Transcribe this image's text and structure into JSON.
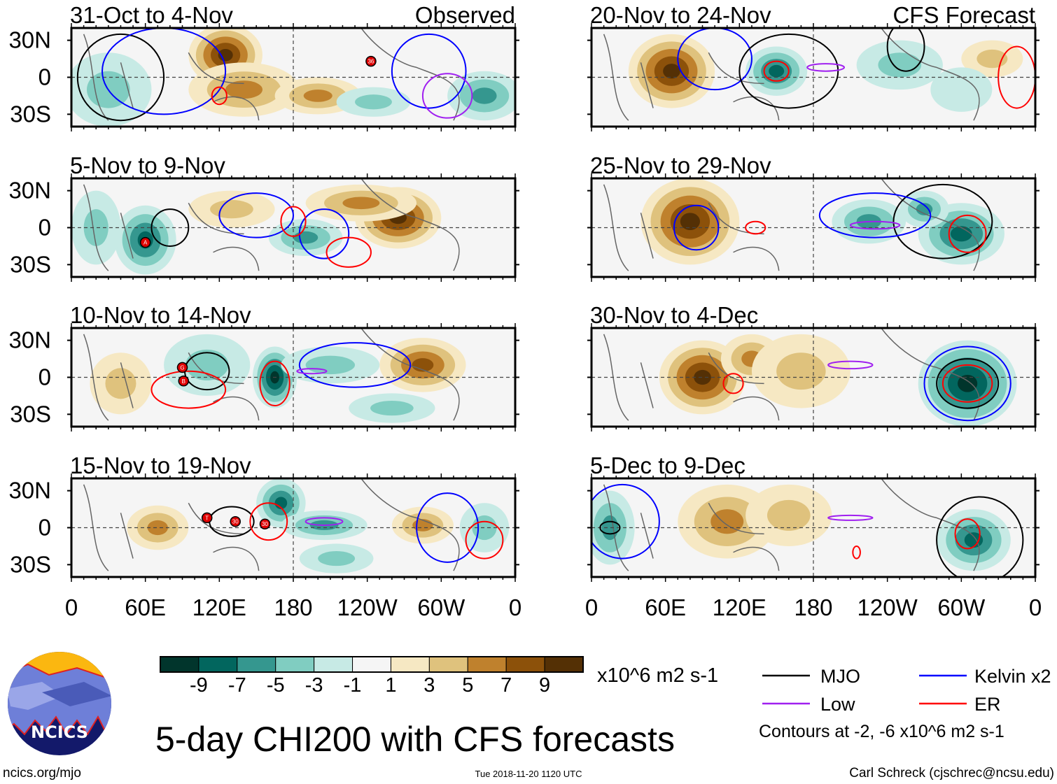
{
  "panels": [
    {
      "title": "31-Oct to 4-Nov",
      "tag": "Observed",
      "blobs": [
        {
          "lon": 125,
          "lat": 18,
          "rx": 30,
          "ry": 25,
          "v": 9
        },
        {
          "lon": 140,
          "lat": -10,
          "rx": 45,
          "ry": 22,
          "v": 5
        },
        {
          "lon": 200,
          "lat": -15,
          "rx": 35,
          "ry": 15,
          "v": 5
        },
        {
          "lon": 30,
          "lat": -10,
          "rx": 35,
          "ry": 30,
          "v": -3
        },
        {
          "lon": 335,
          "lat": -15,
          "rx": 30,
          "ry": 20,
          "v": -5
        },
        {
          "lon": 245,
          "lat": -20,
          "rx": 30,
          "ry": 12,
          "v": -3
        }
      ],
      "contours": [
        {
          "type": "mjo",
          "lon": 40,
          "lat": 0,
          "rx": 35,
          "ry": 35
        },
        {
          "type": "kelvin",
          "lon": 75,
          "lat": 5,
          "rx": 50,
          "ry": 35
        },
        {
          "type": "kelvin",
          "lon": 290,
          "lat": 5,
          "rx": 30,
          "ry": 30
        },
        {
          "type": "er",
          "lon": 120,
          "lat": -15,
          "rx": 6,
          "ry": 7
        },
        {
          "type": "low",
          "lon": 305,
          "lat": -15,
          "rx": 20,
          "ry": 18
        }
      ],
      "storms": [
        {
          "lon": 243,
          "lat": 13,
          "label": "36"
        }
      ]
    },
    {
      "title": "5-Nov to 9-Nov",
      "tag": "",
      "blobs": [
        {
          "lon": 265,
          "lat": 8,
          "rx": 35,
          "ry": 25,
          "v": 9
        },
        {
          "lon": 235,
          "lat": 20,
          "rx": 45,
          "ry": 15,
          "v": 5
        },
        {
          "lon": 130,
          "lat": 15,
          "rx": 35,
          "ry": 15,
          "v": 3
        },
        {
          "lon": 60,
          "lat": -10,
          "rx": 25,
          "ry": 28,
          "v": -7
        },
        {
          "lon": 190,
          "lat": -8,
          "rx": 30,
          "ry": 15,
          "v": -5
        },
        {
          "lon": 20,
          "lat": 0,
          "rx": 20,
          "ry": 30,
          "v": -3
        }
      ],
      "contours": [
        {
          "type": "mjo",
          "lon": 80,
          "lat": 0,
          "rx": 15,
          "ry": 15
        },
        {
          "type": "kelvin",
          "lon": 150,
          "lat": 10,
          "rx": 30,
          "ry": 18
        },
        {
          "type": "kelvin",
          "lon": 205,
          "lat": -5,
          "rx": 20,
          "ry": 20
        },
        {
          "type": "er",
          "lon": 180,
          "lat": 5,
          "rx": 10,
          "ry": 12
        },
        {
          "type": "er",
          "lon": 225,
          "lat": -20,
          "rx": 18,
          "ry": 12
        }
      ],
      "storms": [
        {
          "lon": 60,
          "lat": -12,
          "label": "A"
        }
      ]
    },
    {
      "title": "10-Nov to 14-Nov",
      "tag": "",
      "blobs": [
        {
          "lon": 165,
          "lat": 0,
          "rx": 18,
          "ry": 25,
          "v": 9,
          "neg": true
        },
        {
          "lon": 40,
          "lat": -5,
          "rx": 25,
          "ry": 25,
          "v": 3
        },
        {
          "lon": 285,
          "lat": 10,
          "rx": 35,
          "ry": 22,
          "v": 7
        },
        {
          "lon": 110,
          "lat": 10,
          "rx": 35,
          "ry": 25,
          "v": -3
        },
        {
          "lon": 210,
          "lat": 10,
          "rx": 40,
          "ry": 15,
          "v": -3
        },
        {
          "lon": 260,
          "lat": -25,
          "rx": 35,
          "ry": 12,
          "v": -3
        }
      ],
      "contours": [
        {
          "type": "mjo",
          "lon": 110,
          "lat": 5,
          "rx": 18,
          "ry": 15
        },
        {
          "type": "er",
          "lon": 95,
          "lat": -10,
          "rx": 30,
          "ry": 15
        },
        {
          "type": "er",
          "lon": 165,
          "lat": -5,
          "rx": 12,
          "ry": 18
        },
        {
          "type": "kelvin",
          "lon": 230,
          "lat": 10,
          "rx": 45,
          "ry": 18
        },
        {
          "type": "low",
          "lon": 195,
          "lat": 5,
          "rx": 12,
          "ry": 2
        }
      ],
      "storms": [
        {
          "lon": 90,
          "lat": 8,
          "label": "G"
        },
        {
          "lon": 91,
          "lat": -3,
          "label": "B"
        }
      ]
    },
    {
      "title": "15-Nov to 19-Nov",
      "tag": "",
      "blobs": [
        {
          "lon": 70,
          "lat": 0,
          "rx": 25,
          "ry": 18,
          "v": 5
        },
        {
          "lon": 170,
          "lat": 20,
          "rx": 20,
          "ry": 20,
          "v": -7
        },
        {
          "lon": 205,
          "lat": 2,
          "rx": 35,
          "ry": 12,
          "v": -5
        },
        {
          "lon": 285,
          "lat": 2,
          "rx": 25,
          "ry": 15,
          "v": 5
        },
        {
          "lon": 215,
          "lat": -25,
          "rx": 30,
          "ry": 12,
          "v": -3
        },
        {
          "lon": 335,
          "lat": 0,
          "rx": 20,
          "ry": 20,
          "v": -3
        }
      ],
      "contours": [
        {
          "type": "mjo",
          "lon": 130,
          "lat": 5,
          "rx": 18,
          "ry": 12
        },
        {
          "type": "er",
          "lon": 160,
          "lat": 5,
          "rx": 15,
          "ry": 15
        },
        {
          "type": "kelvin",
          "lon": 305,
          "lat": 0,
          "rx": 25,
          "ry": 28
        },
        {
          "type": "low",
          "lon": 205,
          "lat": 5,
          "rx": 15,
          "ry": 3
        },
        {
          "type": "er",
          "lon": 335,
          "lat": -10,
          "rx": 15,
          "ry": 15
        }
      ],
      "storms": [
        {
          "lon": 110,
          "lat": 8,
          "label": "T"
        },
        {
          "lon": 133,
          "lat": 5,
          "label": "30"
        },
        {
          "lon": 157,
          "lat": 3,
          "label": "30"
        }
      ]
    },
    {
      "title": "20-Nov to 24-Nov",
      "tag": "CFS Forecast",
      "blobs": [
        {
          "lon": 65,
          "lat": 5,
          "rx": 35,
          "ry": 30,
          "v": 9
        },
        {
          "lon": 150,
          "lat": 5,
          "rx": 25,
          "ry": 20,
          "v": -7
        },
        {
          "lon": 250,
          "lat": 10,
          "rx": 35,
          "ry": 20,
          "v": -3
        },
        {
          "lon": 325,
          "lat": 15,
          "rx": 25,
          "ry": 15,
          "v": 3
        },
        {
          "lon": 300,
          "lat": -10,
          "rx": 25,
          "ry": 18,
          "v": -1
        }
      ],
      "contours": [
        {
          "type": "kelvin",
          "lon": 100,
          "lat": 15,
          "rx": 30,
          "ry": 25
        },
        {
          "type": "er",
          "lon": 150,
          "lat": 5,
          "rx": 10,
          "ry": 8
        },
        {
          "type": "mjo",
          "lon": 160,
          "lat": 5,
          "rx": 40,
          "ry": 30
        },
        {
          "type": "low",
          "lon": 190,
          "lat": 8,
          "rx": 15,
          "ry": 3
        },
        {
          "type": "er",
          "lon": 345,
          "lat": 0,
          "rx": 15,
          "ry": 25
        },
        {
          "type": "mjo",
          "lon": 255,
          "lat": 25,
          "rx": 15,
          "ry": 20
        }
      ],
      "storms": []
    },
    {
      "title": "25-Nov to 29-Nov",
      "tag": "",
      "blobs": [
        {
          "lon": 80,
          "lat": 5,
          "rx": 40,
          "ry": 35,
          "v": 9
        },
        {
          "lon": 300,
          "lat": -5,
          "rx": 35,
          "ry": 25,
          "v": -7
        },
        {
          "lon": 225,
          "lat": 5,
          "rx": 30,
          "ry": 18,
          "v": -5
        },
        {
          "lon": 270,
          "lat": 15,
          "rx": 20,
          "ry": 15,
          "v": -5
        }
      ],
      "contours": [
        {
          "type": "kelvin",
          "lon": 85,
          "lat": 0,
          "rx": 18,
          "ry": 18
        },
        {
          "type": "mjo",
          "lon": 285,
          "lat": 5,
          "rx": 40,
          "ry": 30
        },
        {
          "type": "er",
          "lon": 305,
          "lat": -5,
          "rx": 15,
          "ry": 15
        },
        {
          "type": "kelvin",
          "lon": 230,
          "lat": 10,
          "rx": 45,
          "ry": 18
        },
        {
          "type": "er",
          "lon": 133,
          "lat": 0,
          "rx": 8,
          "ry": 5
        },
        {
          "type": "low",
          "lon": 230,
          "lat": 2,
          "rx": 20,
          "ry": 3
        }
      ],
      "storms": []
    },
    {
      "title": "30-Nov to 4-Dec",
      "tag": "",
      "blobs": [
        {
          "lon": 90,
          "lat": 0,
          "rx": 35,
          "ry": 30,
          "v": 9
        },
        {
          "lon": 130,
          "lat": 15,
          "rx": 25,
          "ry": 20,
          "v": 5
        },
        {
          "lon": 170,
          "lat": 5,
          "rx": 40,
          "ry": 30,
          "v": 3
        },
        {
          "lon": 305,
          "lat": -5,
          "rx": 40,
          "ry": 35,
          "v": -9
        }
      ],
      "contours": [
        {
          "type": "er",
          "lon": 115,
          "lat": -5,
          "rx": 8,
          "ry": 8
        },
        {
          "type": "mjo",
          "lon": 305,
          "lat": -5,
          "rx": 25,
          "ry": 20
        },
        {
          "type": "kelvin",
          "lon": 305,
          "lat": -5,
          "rx": 35,
          "ry": 30
        },
        {
          "type": "er",
          "lon": 305,
          "lat": -5,
          "rx": 20,
          "ry": 15
        },
        {
          "type": "low",
          "lon": 210,
          "lat": 10,
          "rx": 18,
          "ry": 3
        }
      ],
      "storms": []
    },
    {
      "title": "5-Dec to 9-Dec",
      "tag": "",
      "blobs": [
        {
          "lon": 110,
          "lat": 5,
          "rx": 40,
          "ry": 30,
          "v": 5
        },
        {
          "lon": 160,
          "lat": 10,
          "rx": 35,
          "ry": 25,
          "v": 3
        },
        {
          "lon": 15,
          "lat": 0,
          "rx": 20,
          "ry": 30,
          "v": -5
        },
        {
          "lon": 310,
          "lat": -10,
          "rx": 30,
          "ry": 25,
          "v": -7
        }
      ],
      "contours": [
        {
          "type": "kelvin",
          "lon": 25,
          "lat": 5,
          "rx": 30,
          "ry": 30
        },
        {
          "type": "mjo",
          "lon": 15,
          "lat": 0,
          "rx": 8,
          "ry": 5
        },
        {
          "type": "mjo",
          "lon": 315,
          "lat": -10,
          "rx": 35,
          "ry": 35
        },
        {
          "type": "er",
          "lon": 305,
          "lat": -5,
          "rx": 10,
          "ry": 12
        },
        {
          "type": "low",
          "lon": 210,
          "lat": 8,
          "rx": 18,
          "ry": 2
        },
        {
          "type": "er",
          "lon": 215,
          "lat": -20,
          "rx": 3,
          "ry": 5
        }
      ],
      "storms": []
    }
  ],
  "lat_labels": [
    "30N",
    "0",
    "30S"
  ],
  "lon_labels": [
    "0",
    "60E",
    "120E",
    "180",
    "120W",
    "60W",
    "0"
  ],
  "colorbar": {
    "colors": [
      "#01352c",
      "#02665e",
      "#35978f",
      "#80cdc1",
      "#c7eae5",
      "#f5f5f5",
      "#f6e8c3",
      "#dfc27d",
      "#bf812d",
      "#8c510a",
      "#543005"
    ],
    "labels": [
      "-9",
      "-7",
      "-5",
      "-3",
      "-1",
      "1",
      "3",
      "5",
      "7",
      "9"
    ],
    "units": "x10^6 m2 s-1"
  },
  "legend": {
    "items": [
      {
        "label": "MJO",
        "color": "#000000"
      },
      {
        "label": "Kelvin x2",
        "color": "#0000ff"
      },
      {
        "label": "Low",
        "color": "#a020f0"
      },
      {
        "label": "ER",
        "color": "#ff0000"
      }
    ],
    "note": "Contours at -2, -6 x10^6 m2 s-1"
  },
  "title": "5-day CHI200 with CFS forecasts",
  "logo_text": "NCICS",
  "footer": {
    "url": "ncics.org/mjo",
    "timestamp": "Tue 2018-11-20 1120 UTC",
    "author": "Carl Schreck (cjschrec@ncsu.edu)"
  }
}
